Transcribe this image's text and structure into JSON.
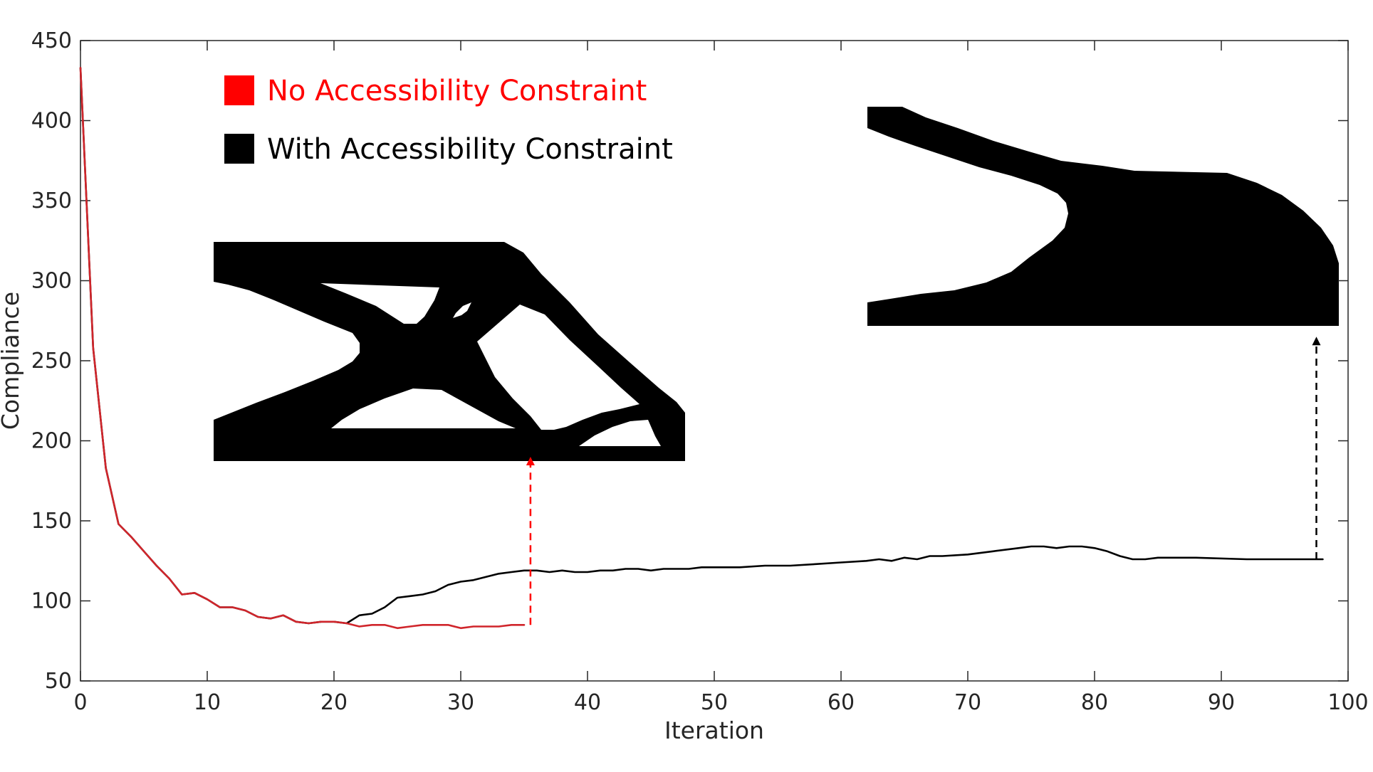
{
  "chart_data": {
    "type": "line",
    "xlabel": "Iteration",
    "ylabel": "Compliance",
    "xlim": [
      0,
      100
    ],
    "ylim": [
      50,
      450
    ],
    "xticks": [
      0,
      10,
      20,
      30,
      40,
      50,
      60,
      70,
      80,
      90,
      100
    ],
    "yticks": [
      50,
      100,
      150,
      200,
      250,
      300,
      350,
      400,
      450
    ],
    "box": true,
    "grid": false,
    "legend_position": "top-left",
    "series": [
      {
        "name": "No Accessibility Constraint",
        "color": "#ff0000",
        "line_color": "#d0252b",
        "x": [
          0,
          1,
          2,
          3,
          4,
          5,
          6,
          7,
          8,
          9,
          10,
          11,
          12,
          13,
          14,
          15,
          16,
          17,
          18,
          19,
          20,
          21,
          22,
          23,
          24,
          25,
          26,
          27,
          28,
          29,
          30,
          31,
          32,
          33,
          34,
          35
        ],
        "y": [
          433,
          258,
          183,
          148,
          140,
          131,
          122,
          114,
          104,
          105,
          101,
          96,
          96,
          94,
          90,
          89,
          91,
          87,
          86,
          87,
          87,
          86,
          84,
          85,
          85,
          83,
          84,
          85,
          85,
          85,
          83,
          84,
          84,
          84,
          85,
          85
        ]
      },
      {
        "name": "With Accessibility Constraint",
        "color": "#000000",
        "line_color": "#000000",
        "x": [
          0,
          1,
          2,
          3,
          4,
          5,
          6,
          7,
          8,
          9,
          10,
          11,
          12,
          13,
          14,
          15,
          16,
          17,
          18,
          19,
          20,
          21,
          22,
          23,
          24,
          25,
          26,
          27,
          28,
          29,
          30,
          31,
          32,
          33,
          34,
          35,
          36,
          37,
          38,
          39,
          40,
          41,
          42,
          43,
          44,
          45,
          46,
          47,
          48,
          49,
          50,
          52,
          54,
          56,
          58,
          60,
          62,
          63,
          64,
          65,
          66,
          67,
          68,
          70,
          72,
          74,
          75,
          76,
          77,
          78,
          79,
          80,
          81,
          82,
          83,
          84,
          85,
          88,
          92,
          95,
          96,
          97,
          98
        ],
        "y": [
          433,
          258,
          183,
          148,
          140,
          131,
          122,
          114,
          104,
          105,
          101,
          96,
          96,
          94,
          90,
          89,
          91,
          87,
          86,
          87,
          87,
          86,
          91,
          92,
          96,
          102,
          103,
          104,
          106,
          110,
          112,
          113,
          115,
          117,
          118,
          119,
          119,
          118,
          119,
          118,
          118,
          119,
          119,
          120,
          120,
          119,
          120,
          120,
          120,
          121,
          121,
          121,
          122,
          122,
          123,
          124,
          125,
          126,
          125,
          127,
          126,
          128,
          128,
          129,
          131,
          133,
          134,
          134,
          133,
          134,
          134,
          133,
          131,
          128,
          126,
          126,
          127,
          127,
          126,
          126,
          126,
          126,
          126
        ]
      }
    ],
    "annotations": [
      {
        "type": "arrow",
        "style": "dashed",
        "color": "#ff0000",
        "x": 35.5,
        "y_from": 85,
        "y_to": 190
      },
      {
        "type": "arrow",
        "style": "dashed",
        "color": "#000000",
        "x": 97.5,
        "y_from": 126,
        "y_to": 265
      }
    ],
    "insets": [
      {
        "depicts": "topology-with-internal-voids",
        "linked_series": "No Accessibility Constraint"
      },
      {
        "depicts": "topology-without-internal-voids",
        "linked_series": "With Accessibility Constraint"
      }
    ]
  }
}
